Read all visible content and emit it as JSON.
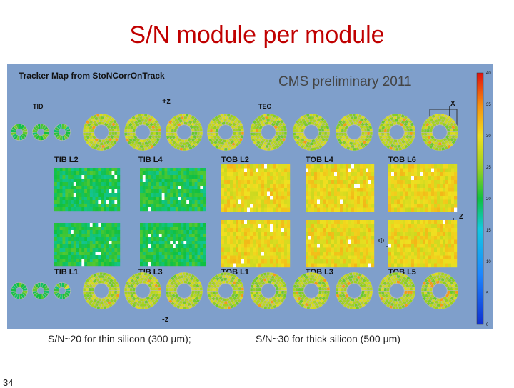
{
  "slide": {
    "title": "S/N module per module",
    "caption_left": "S/N~20 for thin silicon (300 µm);",
    "caption_right": "S/N~30 for thick silicon (500 µm)",
    "page_number": "34"
  },
  "chart_data": {
    "type": "heatmap",
    "title": "Tracker Map from StoNCorrOnTrack",
    "watermark": "CMS preliminary 2011",
    "labels": {
      "tid": "TID",
      "tec": "TEC",
      "plus_z": "+z",
      "minus_z": "-z",
      "axis_x": "X",
      "axis_y": "Y",
      "axis_z": "Z",
      "phi": "Φ"
    },
    "layers": {
      "top": [
        "TIB L2",
        "TIB L4",
        "TOB L2",
        "TOB L4",
        "TOB L6"
      ],
      "bottom": [
        "TIB L1",
        "TIB L3",
        "TOB L1",
        "TOB L3",
        "TOB L5"
      ]
    },
    "layer_typical_sn": {
      "TIB L1": 20,
      "TIB L2": 20,
      "TIB L3": 20,
      "TIB L4": 20,
      "TOB L1": 30,
      "TOB L2": 30,
      "TOB L3": 30,
      "TOB L4": 30,
      "TOB L5": 30,
      "TOB L6": 30
    },
    "colorbar": {
      "min": 0,
      "max": 40,
      "ticks": [
        "0",
        "5",
        "10",
        "15",
        "20",
        "25",
        "30",
        "35",
        "40"
      ]
    },
    "colors": {
      "panel_bg": "#7f9fcb",
      "title_red": "#c00000"
    }
  }
}
